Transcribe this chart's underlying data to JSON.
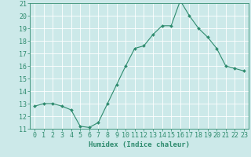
{
  "x": [
    0,
    1,
    2,
    3,
    4,
    5,
    6,
    7,
    8,
    9,
    10,
    11,
    12,
    13,
    14,
    15,
    16,
    17,
    18,
    19,
    20,
    21,
    22,
    23
  ],
  "y": [
    12.8,
    13.0,
    13.0,
    12.8,
    12.5,
    11.2,
    11.1,
    11.5,
    13.0,
    14.5,
    16.0,
    17.4,
    17.6,
    18.5,
    19.2,
    19.2,
    21.2,
    20.0,
    19.0,
    18.3,
    17.4,
    16.0,
    15.8,
    15.6
  ],
  "line_color": "#2e8b6e",
  "marker": "D",
  "marker_size": 2,
  "bg_color": "#cce9e9",
  "grid_color": "#ffffff",
  "xlabel": "Humidex (Indice chaleur)",
  "ylim": [
    11,
    21
  ],
  "xlim_min": -0.5,
  "xlim_max": 23.5,
  "yticks": [
    11,
    12,
    13,
    14,
    15,
    16,
    17,
    18,
    19,
    20,
    21
  ],
  "xticks": [
    0,
    1,
    2,
    3,
    4,
    5,
    6,
    7,
    8,
    9,
    10,
    11,
    12,
    13,
    14,
    15,
    16,
    17,
    18,
    19,
    20,
    21,
    22,
    23
  ],
  "label_fontsize": 6.5,
  "tick_fontsize": 6
}
